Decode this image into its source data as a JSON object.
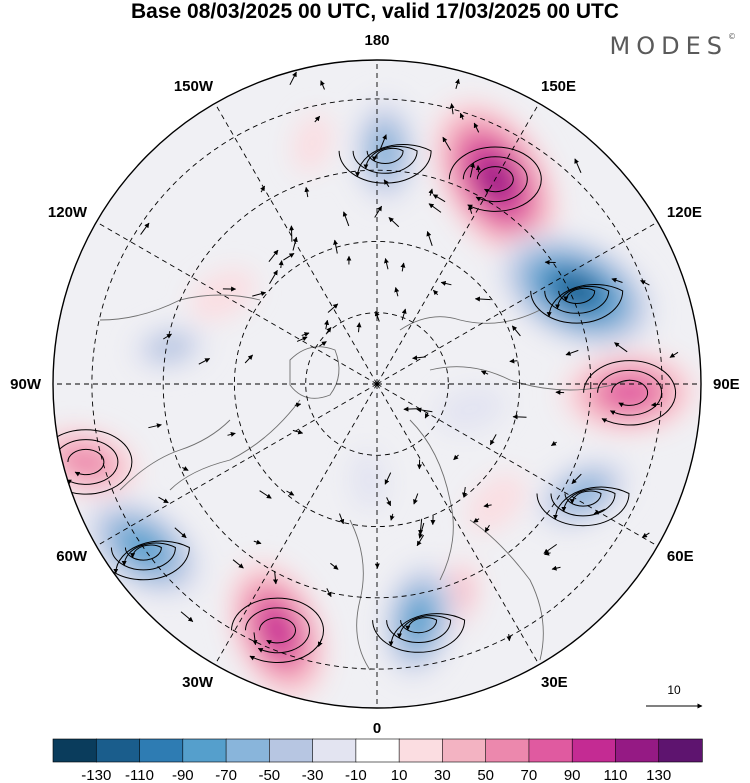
{
  "title": "Base 08/03/2025 00 UTC, valid 17/03/2025 00 UTC",
  "brand": "MODES",
  "brand_mark": "©",
  "longitude_labels": [
    {
      "text": "180",
      "angle": 0
    },
    {
      "text": "150E",
      "angle": 30
    },
    {
      "text": "120E",
      "angle": 60
    },
    {
      "text": "90E",
      "angle": 90
    },
    {
      "text": "60E",
      "angle": 120
    },
    {
      "text": "30E",
      "angle": 150
    },
    {
      "text": "0",
      "angle": 180
    },
    {
      "text": "30W",
      "angle": 210
    },
    {
      "text": "60W",
      "angle": 240
    },
    {
      "text": "90W",
      "angle": 270
    },
    {
      "text": "120W",
      "angle": 300
    },
    {
      "text": "150W",
      "angle": 330
    }
  ],
  "reference_vector_label": "10",
  "colorbar": {
    "colors": [
      "#0a3c5c",
      "#1a5d8c",
      "#2e7cb3",
      "#559fcc",
      "#89b5db",
      "#b7c6e2",
      "#e3e4f1",
      "#ffffff",
      "#fbdde1",
      "#f3b3c2",
      "#ec88ad",
      "#e05aa0",
      "#c42b93",
      "#951a84",
      "#5e146f"
    ],
    "tick_labels": [
      "-130",
      "-110",
      "-90",
      "-70",
      "-50",
      "-30",
      "-10",
      "10",
      "30",
      "50",
      "70",
      "90",
      "110",
      "130"
    ]
  },
  "anomalies": [
    {
      "lon": 150,
      "r": 0.73,
      "value": 120
    },
    {
      "lon": 115,
      "r": 0.68,
      "value": -115
    },
    {
      "lon": 88,
      "r": 0.78,
      "value": 85
    },
    {
      "lon": 62,
      "r": 0.72,
      "value": -55
    },
    {
      "lon": 45,
      "r": 0.52,
      "value": 25
    },
    {
      "lon": 20,
      "r": 0.7,
      "value": 30
    },
    {
      "lon": 10,
      "r": 0.74,
      "value": -70
    },
    {
      "lon": -22,
      "r": 0.82,
      "value": 95
    },
    {
      "lon": -55,
      "r": 0.88,
      "value": -85
    },
    {
      "lon": -75,
      "r": 0.93,
      "value": 60
    },
    {
      "lon": -120,
      "r": 0.55,
      "value": 25
    },
    {
      "lon": -165,
      "r": 0.77,
      "value": 15
    },
    {
      "lon": 178,
      "r": 0.72,
      "value": -60
    },
    {
      "lon": -100,
      "r": 0.65,
      "value": -30
    },
    {
      "lon": 75,
      "r": 0.3,
      "value": -25
    },
    {
      "lon": -5,
      "r": 0.3,
      "value": -15
    }
  ]
}
